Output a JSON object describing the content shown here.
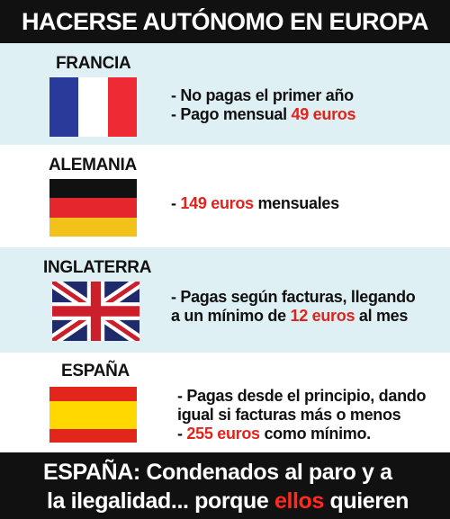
{
  "header": {
    "title": "HACERSE AUTÓNOMO EN EUROPA"
  },
  "sections": [
    {
      "country": "FRANCIA",
      "flag_colors": [
        "#2a3a9a",
        "#ffffff",
        "#ee2a35"
      ],
      "line1": "- No pagas el primer año",
      "line2_prefix": "- Pago mensual ",
      "line2_highlight": "49 euros"
    },
    {
      "country": "ALEMANIA",
      "flag_colors": [
        "#111111",
        "#e4262d",
        "#f2c21b"
      ],
      "line1_prefix": "- ",
      "line1_highlight": "149 euros",
      "line1_suffix": " mensuales"
    },
    {
      "country": "INGLATERRA",
      "flag_colors": [
        "#1f2a6b",
        "#ffffff",
        "#cc1f2b"
      ],
      "line1": "-  Pagas según facturas, llegando",
      "line2_prefix": "a un mínimo de ",
      "line2_highlight": "12 euros",
      "line2_suffix": " al mes"
    },
    {
      "country": "ESPAÑA",
      "flag_colors": [
        "#e2261c",
        "#ffd800",
        "#e2261c"
      ],
      "line1": "- Pagas desde el principio, dando",
      "line2": "igual si facturas más o menos",
      "line3_prefix": "- ",
      "line3_highlight": "255 euros",
      "line3_suffix": " como mínimo."
    }
  ],
  "footer": {
    "line1": "ESPAÑA: Condenados al paro y a",
    "line2_prefix": "la ilegalidad... porque ",
    "line2_highlight": "ellos",
    "line2_suffix": " quieren"
  }
}
